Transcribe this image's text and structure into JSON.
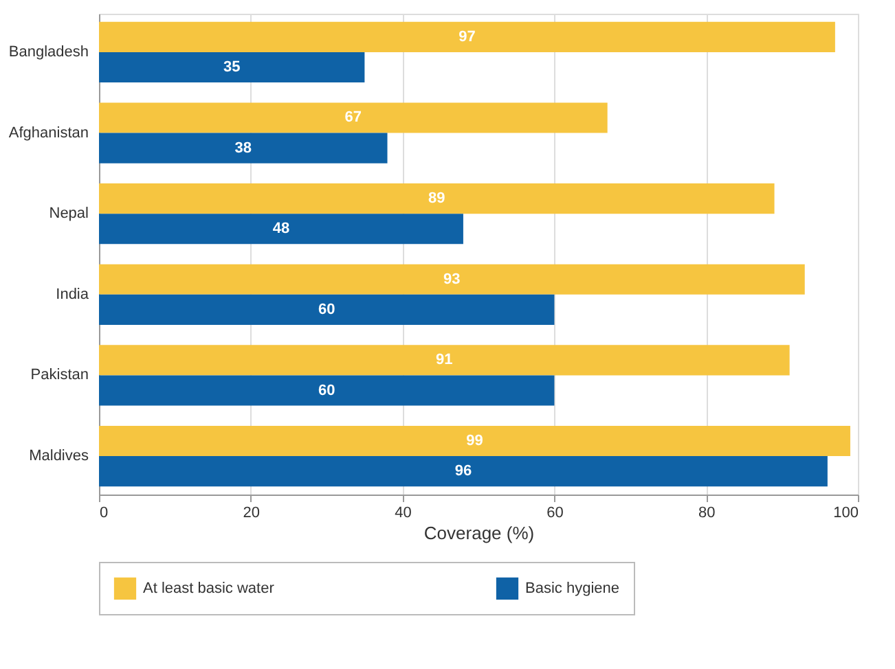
{
  "chart_data": {
    "type": "bar",
    "orientation": "horizontal",
    "xlabel": "Coverage (%)",
    "categories": [
      "Bangladesh",
      "Afghanistan",
      "Nepal",
      "India",
      "Pakistan",
      "Maldives"
    ],
    "series": [
      {
        "name": "At least basic water",
        "color": "#f6c540",
        "values": [
          97,
          67,
          89,
          93,
          91,
          99
        ]
      },
      {
        "name": "Basic hygiene",
        "color": "#0f62a6",
        "values": [
          35,
          38,
          48,
          60,
          60,
          96
        ]
      }
    ],
    "xlim": [
      0,
      100
    ],
    "xticks": [
      0,
      20,
      40,
      60,
      80,
      100
    ],
    "grid": "x",
    "legend": "bottom",
    "data_labels": true
  }
}
